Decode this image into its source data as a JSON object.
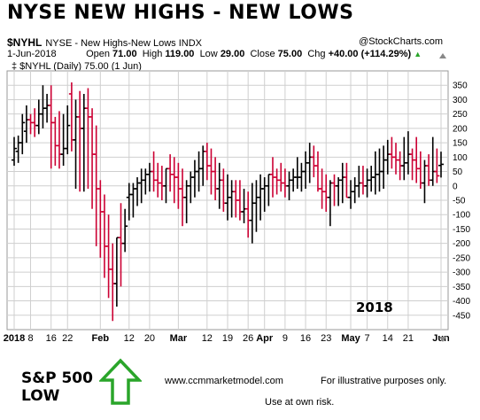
{
  "header": {
    "title": "NYSE NEW HIGHS - NEW LOWS",
    "symbol": "$NYHL",
    "description": "NYSE - New Highs-New Lows  INDX",
    "brand": "@StockCharts.com",
    "date": "1-Jun-2018",
    "open_label": "Open",
    "open_value": "71.00",
    "high_label": "High",
    "high_value": "119.00",
    "low_label": "Low",
    "low_value": "29.00",
    "close_label": "Close",
    "close_value": "75.00",
    "chg_label": "Chg",
    "chg_value": "+40.00 (+114.29%)",
    "chg_arrow": "▲",
    "legend": "‡ $NYHL (Daily) 75.00 (1 Jun)"
  },
  "footer": {
    "sp_line1": "S&P 500",
    "sp_line2": "LOW",
    "website": "www.ccmmarketmodel.com",
    "note1": "For illustrative purposes only.",
    "note2": "Use at own risk."
  },
  "colors": {
    "up": "#000000",
    "down": "#cc0033",
    "arrow": "#2aa52a",
    "grid": "#cfcfcf"
  },
  "chart_data": {
    "type": "ohlc",
    "title": "NYSE NEW HIGHS - NEW LOWS",
    "ylim": [
      -500,
      400
    ],
    "yticks": [
      350,
      300,
      250,
      200,
      150,
      100,
      50,
      0,
      -50,
      -100,
      -150,
      -200,
      -250,
      -300,
      -350,
      -400,
      -450
    ],
    "ytick_labels": [
      "350",
      "300",
      "250",
      "200",
      "150",
      "100",
      "50",
      "0",
      "-50",
      "-100",
      "-150",
      "-200",
      "-250",
      "-300",
      "-350",
      "-400",
      "-450"
    ],
    "xtick_labels": [
      "2018",
      "8",
      "16",
      "22",
      "Feb",
      "12",
      "20",
      "Mar",
      "12",
      "19",
      "26",
      "Apr",
      "9",
      "16",
      "23",
      "May",
      "7",
      "14",
      "21",
      "Jun"
    ],
    "xtick_dates": [
      "2018-01-02",
      "2018-01-08",
      "2018-01-16",
      "2018-01-22",
      "2018-02-01",
      "2018-02-12",
      "2018-02-20",
      "2018-03-01",
      "2018-03-12",
      "2018-03-19",
      "2018-03-26",
      "2018-04-02",
      "2018-04-09",
      "2018-04-16",
      "2018-04-23",
      "2018-05-01",
      "2018-05-07",
      "2018-05-14",
      "2018-05-21",
      "2018-06-01"
    ],
    "annotation": "2018",
    "dates": [
      "2018-01-02",
      "2018-01-03",
      "2018-01-04",
      "2018-01-05",
      "2018-01-08",
      "2018-01-09",
      "2018-01-10",
      "2018-01-11",
      "2018-01-12",
      "2018-01-16",
      "2018-01-17",
      "2018-01-18",
      "2018-01-19",
      "2018-01-22",
      "2018-01-23",
      "2018-01-24",
      "2018-01-25",
      "2018-01-26",
      "2018-01-29",
      "2018-01-30",
      "2018-01-31",
      "2018-02-01",
      "2018-02-02",
      "2018-02-05",
      "2018-02-06",
      "2018-02-07",
      "2018-02-08",
      "2018-02-09",
      "2018-02-12",
      "2018-02-13",
      "2018-02-14",
      "2018-02-15",
      "2018-02-16",
      "2018-02-20",
      "2018-02-21",
      "2018-02-22",
      "2018-02-23",
      "2018-02-26",
      "2018-02-27",
      "2018-02-28",
      "2018-03-01",
      "2018-03-02",
      "2018-03-05",
      "2018-03-06",
      "2018-03-07",
      "2018-03-08",
      "2018-03-09",
      "2018-03-12",
      "2018-03-13",
      "2018-03-14",
      "2018-03-15",
      "2018-03-16",
      "2018-03-19",
      "2018-03-20",
      "2018-03-21",
      "2018-03-22",
      "2018-03-23",
      "2018-03-26",
      "2018-03-27",
      "2018-03-28",
      "2018-03-29",
      "2018-04-02",
      "2018-04-03",
      "2018-04-04",
      "2018-04-05",
      "2018-04-06",
      "2018-04-09",
      "2018-04-10",
      "2018-04-11",
      "2018-04-12",
      "2018-04-13",
      "2018-04-16",
      "2018-04-17",
      "2018-04-18",
      "2018-04-19",
      "2018-04-20",
      "2018-04-23",
      "2018-04-24",
      "2018-04-25",
      "2018-04-26",
      "2018-04-27",
      "2018-04-30",
      "2018-05-01",
      "2018-05-02",
      "2018-05-03",
      "2018-05-04",
      "2018-05-07",
      "2018-05-08",
      "2018-05-09",
      "2018-05-10",
      "2018-05-11",
      "2018-05-14",
      "2018-05-15",
      "2018-05-16",
      "2018-05-17",
      "2018-05-18",
      "2018-05-21",
      "2018-05-22",
      "2018-05-23",
      "2018-05-24",
      "2018-05-25",
      "2018-05-29",
      "2018-05-30",
      "2018-05-31",
      "2018-06-01"
    ],
    "open": [
      90,
      120,
      150,
      190,
      230,
      220,
      210,
      250,
      270,
      280,
      220,
      140,
      110,
      130,
      320,
      160,
      240,
      200,
      270,
      240,
      110,
      -10,
      -90,
      -210,
      -290,
      -340,
      -180,
      -200,
      -40,
      -30,
      -10,
      10,
      20,
      40,
      50,
      20,
      10,
      0,
      60,
      40,
      30,
      -10,
      -40,
      0,
      30,
      50,
      60,
      120,
      70,
      50,
      -10,
      20,
      -60,
      -40,
      -20,
      -50,
      -90,
      -80,
      -120,
      -60,
      -40,
      -10,
      0,
      40,
      30,
      20,
      10,
      0,
      20,
      30,
      30,
      50,
      80,
      100,
      70,
      -10,
      -20,
      -40,
      10,
      0,
      20,
      30,
      -40,
      -20,
      0,
      10,
      0,
      20,
      30,
      40,
      50,
      90,
      110,
      100,
      90,
      70,
      80,
      110,
      90,
      60,
      10,
      70,
      20,
      50,
      71
    ],
    "high": [
      170,
      175,
      250,
      280,
      250,
      270,
      300,
      350,
      320,
      350,
      240,
      260,
      250,
      280,
      360,
      300,
      330,
      320,
      340,
      270,
      210,
      20,
      -30,
      -100,
      -200,
      -180,
      -60,
      -80,
      10,
      10,
      30,
      60,
      60,
      80,
      120,
      80,
      70,
      60,
      110,
      100,
      80,
      60,
      20,
      50,
      90,
      120,
      140,
      150,
      130,
      100,
      80,
      60,
      40,
      20,
      20,
      20,
      -10,
      -20,
      10,
      20,
      40,
      30,
      40,
      100,
      60,
      80,
      60,
      50,
      60,
      100,
      80,
      120,
      150,
      140,
      120,
      60,
      40,
      20,
      40,
      30,
      80,
      80,
      20,
      30,
      70,
      70,
      60,
      70,
      120,
      130,
      140,
      160,
      170,
      150,
      120,
      170,
      190,
      130,
      170,
      120,
      90,
      110,
      170,
      130,
      119
    ],
    "low": [
      70,
      80,
      110,
      150,
      180,
      170,
      180,
      200,
      220,
      60,
      70,
      60,
      70,
      110,
      120,
      -10,
      -20,
      -20,
      -10,
      -80,
      -210,
      -250,
      -320,
      -390,
      -470,
      -420,
      -350,
      -230,
      -120,
      -110,
      -70,
      -60,
      -30,
      -20,
      -20,
      -40,
      -50,
      -60,
      -20,
      -60,
      -80,
      -140,
      -130,
      -60,
      -40,
      -20,
      0,
      20,
      -30,
      -50,
      -80,
      -90,
      -120,
      -110,
      -110,
      -120,
      -130,
      -180,
      -200,
      -160,
      -120,
      -90,
      -70,
      -40,
      -30,
      -20,
      -40,
      -50,
      -20,
      -10,
      -20,
      -10,
      10,
      30,
      -20,
      -80,
      -90,
      -140,
      -70,
      -70,
      -60,
      -40,
      -80,
      -60,
      -40,
      -30,
      -40,
      -20,
      -30,
      -20,
      -10,
      40,
      60,
      40,
      20,
      20,
      40,
      20,
      10,
      -10,
      -60,
      0,
      0,
      10,
      29
    ],
    "close": [
      130,
      150,
      220,
      230,
      220,
      210,
      250,
      270,
      280,
      220,
      140,
      110,
      130,
      210,
      160,
      240,
      200,
      270,
      240,
      110,
      -10,
      -90,
      -210,
      -290,
      -340,
      -180,
      -200,
      -140,
      -30,
      -10,
      10,
      20,
      40,
      50,
      20,
      10,
      0,
      60,
      40,
      30,
      -10,
      -40,
      0,
      30,
      50,
      60,
      120,
      70,
      50,
      -10,
      20,
      -60,
      -40,
      -20,
      -50,
      -90,
      -80,
      -120,
      -60,
      -40,
      -10,
      0,
      40,
      30,
      20,
      10,
      0,
      20,
      30,
      30,
      50,
      80,
      100,
      70,
      -10,
      -20,
      -40,
      10,
      0,
      20,
      30,
      -40,
      -20,
      0,
      10,
      0,
      20,
      30,
      40,
      50,
      90,
      110,
      100,
      90,
      70,
      80,
      110,
      90,
      60,
      10,
      70,
      20,
      50,
      35,
      75
    ]
  }
}
